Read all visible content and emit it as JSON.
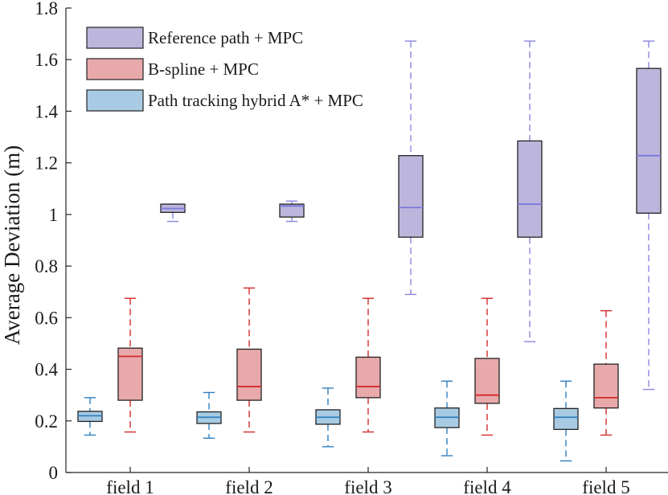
{
  "chart_data": {
    "type": "box",
    "ylabel": "Average  Deviation (m)",
    "ylim": [
      0,
      1.8
    ],
    "yticks": [
      0,
      0.2,
      0.4,
      0.6,
      0.8,
      1,
      1.2,
      1.4,
      1.6,
      1.8
    ],
    "ytick_labels": [
      "0",
      "0.2",
      "0.4",
      "0.6",
      "0.8",
      "1",
      "1.2",
      "1.4",
      "1.6",
      "1.8"
    ],
    "categories": [
      "field 1",
      "field 2",
      "field 3",
      "field 4",
      "field 5"
    ],
    "legend_position": "top-left",
    "grid": false,
    "series": [
      {
        "name": "Path tracking hybrid A* + MPC",
        "fill": "#a8cbe3",
        "median_color": "#2f7fc0",
        "whisker_color": "#2f7fc0",
        "boxes": [
          {
            "min": 0.145,
            "q1": 0.198,
            "median": 0.22,
            "q3": 0.237,
            "max": 0.29
          },
          {
            "min": 0.133,
            "q1": 0.19,
            "median": 0.214,
            "q3": 0.235,
            "max": 0.31
          },
          {
            "min": 0.1,
            "q1": 0.187,
            "median": 0.214,
            "q3": 0.243,
            "max": 0.327
          },
          {
            "min": 0.065,
            "q1": 0.174,
            "median": 0.214,
            "q3": 0.25,
            "max": 0.354
          },
          {
            "min": 0.045,
            "q1": 0.167,
            "median": 0.214,
            "q3": 0.248,
            "max": 0.354
          }
        ]
      },
      {
        "name": "B-spline + MPC",
        "fill": "#e8a9ab",
        "median_color": "#d42a2a",
        "whisker_color": "#d42a2a",
        "boxes": [
          {
            "min": 0.157,
            "q1": 0.28,
            "median": 0.45,
            "q3": 0.482,
            "max": 0.675
          },
          {
            "min": 0.157,
            "q1": 0.28,
            "median": 0.333,
            "q3": 0.478,
            "max": 0.715
          },
          {
            "min": 0.157,
            "q1": 0.29,
            "median": 0.333,
            "q3": 0.447,
            "max": 0.675
          },
          {
            "min": 0.145,
            "q1": 0.268,
            "median": 0.3,
            "q3": 0.442,
            "max": 0.675
          },
          {
            "min": 0.145,
            "q1": 0.25,
            "median": 0.29,
            "q3": 0.42,
            "max": 0.627
          }
        ]
      },
      {
        "name": "Reference path + MPC",
        "fill": "#bdb6dc",
        "median_color": "#7b78dc",
        "whisker_color": "#8c86e0",
        "boxes": [
          {
            "min": 0.973,
            "q1": 1.008,
            "median": 1.023,
            "q3": 1.04,
            "max": 1.04
          },
          {
            "min": 0.973,
            "q1": 0.99,
            "median": 1.033,
            "q3": 1.04,
            "max": 1.052
          },
          {
            "min": 0.69,
            "q1": 0.912,
            "median": 1.027,
            "q3": 1.228,
            "max": 1.672
          },
          {
            "min": 0.507,
            "q1": 0.912,
            "median": 1.04,
            "q3": 1.285,
            "max": 1.672
          },
          {
            "min": 0.322,
            "q1": 1.005,
            "median": 1.228,
            "q3": 1.566,
            "max": 1.672
          }
        ]
      }
    ],
    "legend": [
      {
        "label": "Reference path + MPC",
        "color": "#bdb6dc"
      },
      {
        "label": "B-spline + MPC",
        "color": "#e8a9ab"
      },
      {
        "label": "Path tracking hybrid A* + MPC",
        "color": "#a8cbe3"
      }
    ]
  }
}
